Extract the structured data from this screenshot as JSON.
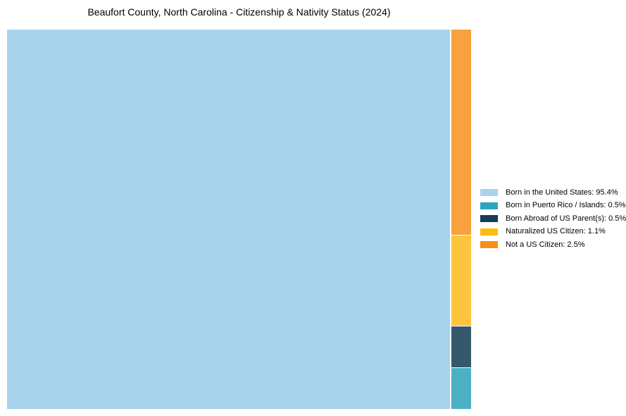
{
  "chart_data": {
    "type": "treemap",
    "title": "Beaufort County, North Carolina - Citizenship & Nativity Status (2024)",
    "unit": "%",
    "series": [
      {
        "name": "Born in the United States",
        "value": 95.4,
        "chart_color": "#A7D3EB",
        "legend_color": "#A7D3EB"
      },
      {
        "name": "Born in Puerto Rico / Islands",
        "value": 0.5,
        "chart_color": "#4BB0C3",
        "legend_color": "#2BA6BF"
      },
      {
        "name": "Born Abroad of US Parent(s)",
        "value": 0.5,
        "chart_color": "#36586C",
        "legend_color": "#143D56"
      },
      {
        "name": "Naturalized US Citizen",
        "value": 1.1,
        "chart_color": "#FDC53E",
        "legend_color": "#FEBC13"
      },
      {
        "name": "Not a US Citizen",
        "value": 2.5,
        "chart_color": "#F9A13C",
        "legend_color": "#F98E16"
      }
    ],
    "legend": {
      "position": "right",
      "items": [
        {
          "label": "Born in the United States: 95.4%",
          "color": "#A7D3EB"
        },
        {
          "label": "Born in Puerto Rico / Islands: 0.5%",
          "color": "#2BA6BF"
        },
        {
          "label": "Born Abroad of US Parent(s): 0.5%",
          "color": "#143D56"
        },
        {
          "label": "Naturalized US Citizen: 1.1%",
          "color": "#FEBC13"
        },
        {
          "label": "Not a US Citizen: 2.5%",
          "color": "#F98E16"
        }
      ]
    },
    "layout": {
      "main_rect": "Born in the United States occupies full-height left block",
      "side_column_top_to_bottom": [
        "Not a US Citizen",
        "Naturalized US Citizen",
        "Born Abroad of US Parent(s)",
        "Born in Puerto Rico / Islands"
      ],
      "grid": "off",
      "axes": "none"
    }
  }
}
